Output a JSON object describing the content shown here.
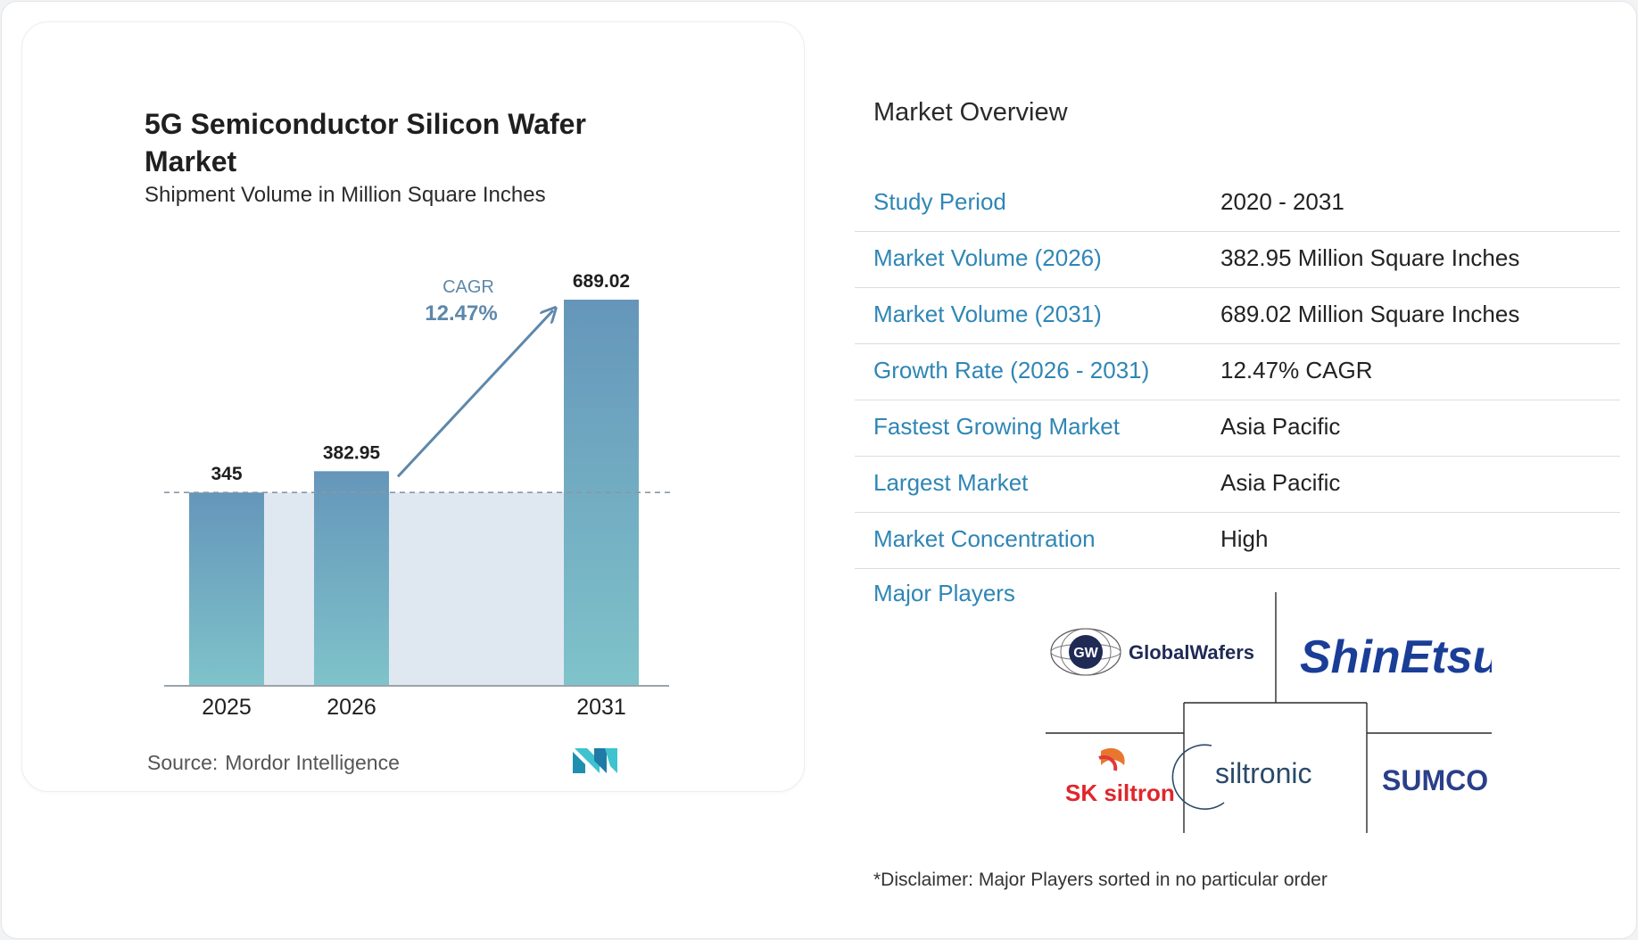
{
  "chart_data": {
    "type": "bar",
    "title": "5G Semiconductor Silicon Wafer Market",
    "subtitle": "Shipment Volume in Million Square Inches",
    "categories": [
      "2025",
      "2026",
      "2031"
    ],
    "values": [
      345,
      382.95,
      689.02
    ],
    "value_labels": [
      "345",
      "382.95",
      "689.02"
    ],
    "ylim": [
      0,
      689.02
    ],
    "reference_line": 345,
    "cagr_label": "CAGR",
    "cagr_value": "12.47%",
    "bar_color_top": "#6596ba",
    "bar_color_bottom": "#7fc3ca",
    "fill_color": "#dfe8f1",
    "arrow_color": "#5d88ab"
  },
  "source": {
    "label": "Source:",
    "value": "Mordor Intelligence",
    "logo_icon": "mordor-intelligence-logo"
  },
  "overview": {
    "title": "Market Overview",
    "rows": [
      {
        "label": "Study Period",
        "value": "2020 - 2031"
      },
      {
        "label": "Market Volume (2026)",
        "value": "382.95 Million Square Inches"
      },
      {
        "label": "Market Volume (2031)",
        "value": "689.02 Million Square Inches"
      },
      {
        "label": "Growth Rate (2026 - 2031)",
        "value": "12.47% CAGR"
      },
      {
        "label": "Fastest Growing Market",
        "value": "Asia Pacific"
      },
      {
        "label": "Largest Market",
        "value": "Asia Pacific"
      },
      {
        "label": "Market Concentration",
        "value": "High"
      }
    ],
    "major_players_label": "Major Players",
    "players": [
      "GlobalWafers",
      "ShinEtsu",
      "SK siltron",
      "siltronic",
      "SUMCO"
    ],
    "disclaimer": "*Disclaimer: Major Players sorted in no particular order"
  },
  "colors": {
    "label_blue": "#2f86b5",
    "divider": "#d9dde2"
  }
}
